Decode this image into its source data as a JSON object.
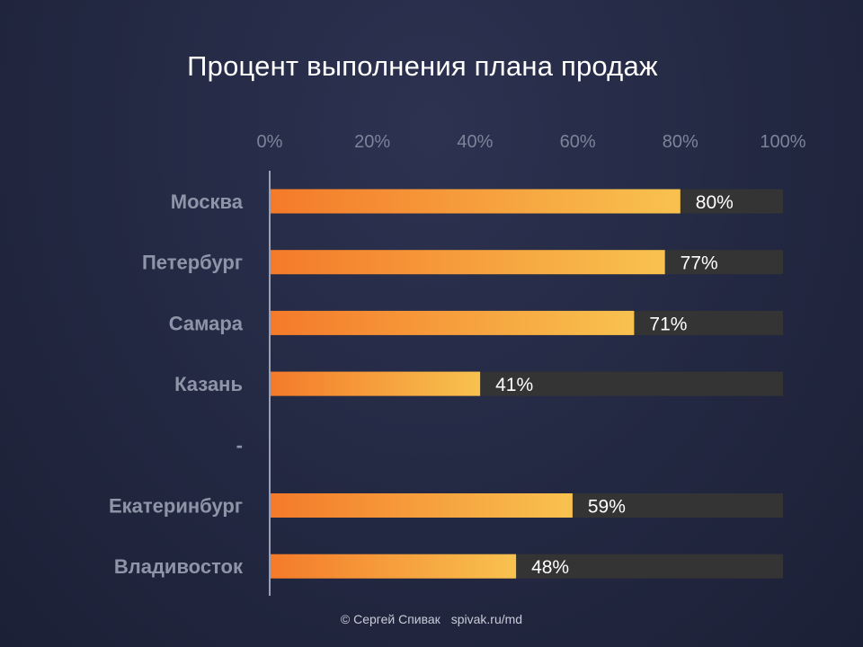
{
  "chart_data": {
    "type": "bar",
    "orientation": "horizontal",
    "title": "Процент выполнения плана продаж",
    "categories": [
      "Москва",
      "Петербург",
      "Самара",
      "Казань",
      "-",
      "Екатеринбург",
      "Владивосток"
    ],
    "values": [
      80,
      77,
      71,
      41,
      null,
      59,
      48
    ],
    "value_labels": [
      "80%",
      "77%",
      "71%",
      "41%",
      "",
      "59%",
      "48%"
    ],
    "xlim": [
      0,
      100
    ],
    "x_ticks": [
      "0%",
      "20%",
      "40%",
      "60%",
      "80%",
      "100%"
    ],
    "x_axis_position": "top",
    "grid": false,
    "legend": "none",
    "colors": {
      "bar_start": "#f47a2a",
      "bar_end": "#f8c24f",
      "track": "#343434",
      "axis_line": "#9aa0b4",
      "value_text": "#ffffff",
      "category_text": "#8f95a8",
      "tick_text": "#7d8398"
    }
  },
  "footer": {
    "copyright": "© Сергей Спивак",
    "url": "spivak.ru/md"
  }
}
